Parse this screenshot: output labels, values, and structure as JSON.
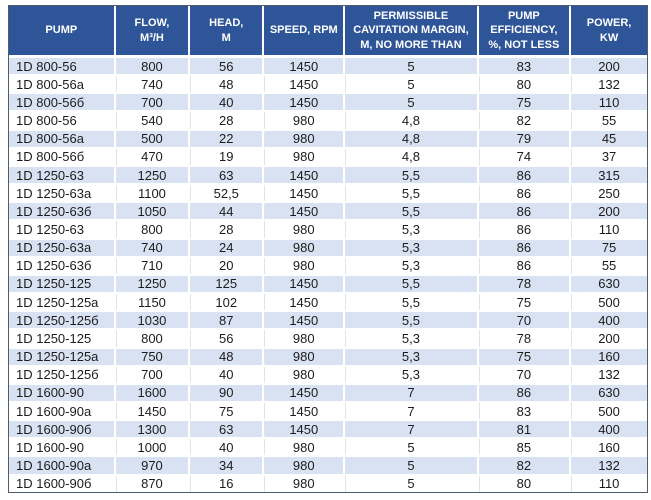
{
  "colors": {
    "header_bg": "#2e5597",
    "header_text": "#ffffff",
    "band_row_bg": "#d9e2f3",
    "plain_row_bg": "#ffffff",
    "cell_text": "#1c1c1c",
    "outer_border": "#4f5b6e"
  },
  "table": {
    "header": {
      "columns": [
        {
          "id": "pump",
          "label": "PUMP"
        },
        {
          "id": "flow",
          "label": "FLOW,\nM³/H"
        },
        {
          "id": "head",
          "label": "HEAD,\nM"
        },
        {
          "id": "speed",
          "label": "SPEED, RPM"
        },
        {
          "id": "cavitation",
          "label": "PERMISSIBLE\nCAVITATION MARGIN,\nM, NO MORE THAN"
        },
        {
          "id": "efficiency",
          "label": "PUMP\nEFFICIENCY,\n%, NOT LESS"
        },
        {
          "id": "power",
          "label": "POWER,\nKW"
        }
      ]
    },
    "rows": [
      [
        "1D 800-56",
        "800",
        "56",
        "1450",
        "5",
        "83",
        "200"
      ],
      [
        "1D 800-56a",
        "740",
        "48",
        "1450",
        "5",
        "80",
        "132"
      ],
      [
        "1D 800-56б",
        "700",
        "40",
        "1450",
        "5",
        "75",
        "110"
      ],
      [
        "1D 800-56",
        "540",
        "28",
        "980",
        "4,8",
        "82",
        "55"
      ],
      [
        "1D 800-56a",
        "500",
        "22",
        "980",
        "4,8",
        "79",
        "45"
      ],
      [
        "1D 800-56б",
        "470",
        "19",
        "980",
        "4,8",
        "74",
        "37"
      ],
      [
        "1D 1250-63",
        "1250",
        "63",
        "1450",
        "5,5",
        "86",
        "315"
      ],
      [
        "1D 1250-63a",
        "1100",
        "52,5",
        "1450",
        "5,5",
        "86",
        "250"
      ],
      [
        "1D 1250-63б",
        "1050",
        "44",
        "1450",
        "5,5",
        "86",
        "200"
      ],
      [
        "1D 1250-63",
        "800",
        "28",
        "980",
        "5,3",
        "86",
        "110"
      ],
      [
        "1D 1250-63a",
        "740",
        "24",
        "980",
        "5,3",
        "86",
        "75"
      ],
      [
        "1D 1250-63б",
        "710",
        "20",
        "980",
        "5,3",
        "86",
        "55"
      ],
      [
        "1D 1250-125",
        "1250",
        "125",
        "1450",
        "5,5",
        "78",
        "630"
      ],
      [
        "1D 1250-125a",
        "1150",
        "102",
        "1450",
        "5,5",
        "75",
        "500"
      ],
      [
        "1D 1250-125б",
        "1030",
        "87",
        "1450",
        "5,5",
        "70",
        "400"
      ],
      [
        "1D 1250-125",
        "800",
        "56",
        "980",
        "5,3",
        "78",
        "200"
      ],
      [
        "1D 1250-125a",
        "750",
        "48",
        "980",
        "5,3",
        "75",
        "160"
      ],
      [
        "1D 1250-125б",
        "700",
        "40",
        "980",
        "5,3",
        "70",
        "132"
      ],
      [
        "1D 1600-90",
        "1600",
        "90",
        "1450",
        "7",
        "86",
        "630"
      ],
      [
        "1D 1600-90a",
        "1450",
        "75",
        "1450",
        "7",
        "83",
        "500"
      ],
      [
        "1D 1600-90б",
        "1300",
        "63",
        "1450",
        "7",
        "81",
        "400"
      ],
      [
        "1D 1600-90",
        "1000",
        "40",
        "980",
        "5",
        "85",
        "160"
      ],
      [
        "1D 1600-90a",
        "970",
        "34",
        "980",
        "5",
        "82",
        "132"
      ],
      [
        "1D 1600-90б",
        "870",
        "16",
        "980",
        "5",
        "80",
        "110"
      ]
    ]
  }
}
